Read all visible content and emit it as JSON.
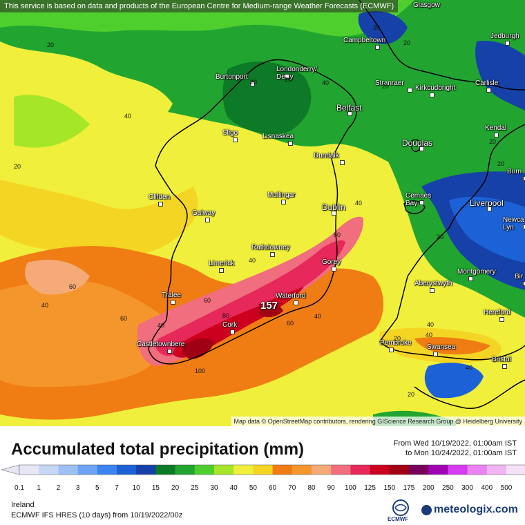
{
  "map": {
    "disclaimer": "This service is based on data and products of the European Centre for Medium-range Weather Forecasts (ECMWF)",
    "attribution": "Map data © OpenStreetMap contributors, rendering GIScience Research Group @ Heidelberg University",
    "max_value": "157",
    "cities": [
      {
        "name": "Glasgow",
        "icon": "none"
      },
      {
        "name": "Campbeltown",
        "icon": "city-dot"
      },
      {
        "name": "Jedburgh",
        "icon": "city-dot"
      },
      {
        "name": "Londonderry/\nDerry",
        "icon": "city-dot"
      },
      {
        "name": "Burtonport",
        "icon": "city-dot"
      },
      {
        "name": "Stranraer",
        "icon": "city-dot"
      },
      {
        "name": "Kirkcudbright",
        "icon": "city-dot"
      },
      {
        "name": "Carlisle",
        "icon": "city-dot"
      },
      {
        "name": "Belfast",
        "icon": "city-dot"
      },
      {
        "name": "Kendal",
        "icon": "city-dot"
      },
      {
        "name": "Sligo",
        "icon": "city-dot"
      },
      {
        "name": "Lisnaskea",
        "icon": "city-dot"
      },
      {
        "name": "Douglas",
        "icon": "city-dot"
      },
      {
        "name": "Dundalk",
        "icon": "city-dot"
      },
      {
        "name": "Burn",
        "icon": "city-dot"
      },
      {
        "name": "Mullingar",
        "icon": "city-dot"
      },
      {
        "name": "Clifden",
        "icon": "city-dot"
      },
      {
        "name": "Cemaes\nBay",
        "icon": "city-dot"
      },
      {
        "name": "Liverpool",
        "icon": "city-dot"
      },
      {
        "name": "Dublin",
        "icon": "city-dot"
      },
      {
        "name": "Galway",
        "icon": "city-dot"
      },
      {
        "name": "Newca\nLyn",
        "icon": "city-dot"
      },
      {
        "name": "Rathdowney",
        "icon": "city-dot"
      },
      {
        "name": "Limerick",
        "icon": "city-dot"
      },
      {
        "name": "Gorey",
        "icon": "city-dot"
      },
      {
        "name": "Montgomery",
        "icon": "city-dot"
      },
      {
        "name": "Bir",
        "icon": "city-dot"
      },
      {
        "name": "Aberystwyth",
        "icon": "city-dot"
      },
      {
        "name": "Tralee",
        "icon": "city-dot"
      },
      {
        "name": "Waterford",
        "icon": "city-dot"
      },
      {
        "name": "Hereford",
        "icon": "city-dot"
      },
      {
        "name": "Cork",
        "icon": "city-dot"
      },
      {
        "name": "Castletownbere",
        "icon": "city-dot"
      },
      {
        "name": "Pembroke",
        "icon": "city-dot"
      },
      {
        "name": "Swansea",
        "icon": "city-dot"
      },
      {
        "name": "Bristol",
        "icon": "city-dot"
      }
    ],
    "contour_labels": [
      "20",
      "20",
      "40",
      "20",
      "20",
      "40",
      "20",
      "20",
      "40",
      "60",
      "40",
      "60",
      "40",
      "60",
      "80",
      "100",
      "60",
      "40",
      "20",
      "40",
      "40",
      "20",
      "40",
      "20",
      "60",
      "40",
      "20",
      "20",
      "20"
    ]
  },
  "footer": {
    "title": "Accumulated total precipitation (mm)",
    "period_from": "From Wed 10/19/2022, 01:00am IST",
    "period_to": "to Mon 10/24/2022, 01:00am IST",
    "region": "Ireland",
    "model": "ECMWF IFS HRES (10 days) from 10/19/2022/00z",
    "ecmwf_logo_text": "ECMWF",
    "brand": "meteologix.com"
  },
  "legend": {
    "labels": [
      "0.1",
      "1",
      "2",
      "3",
      "5",
      "7",
      "10",
      "15",
      "20",
      "25",
      "30",
      "40",
      "50",
      "60",
      "70",
      "80",
      "90",
      "100",
      "125",
      "150",
      "175",
      "200",
      "250",
      "300",
      "400",
      "500"
    ],
    "colors": [
      "#e6e6f5",
      "#c6d7f5",
      "#9fc0f5",
      "#6ea4f5",
      "#3d84f0",
      "#1d61d6",
      "#1641a8",
      "#0c7a27",
      "#21a530",
      "#4fcf2e",
      "#a6e629",
      "#f0f03c",
      "#f5d523",
      "#f07d14",
      "#f5962d",
      "#f5aa78",
      "#f06e7d",
      "#e6285a",
      "#cc001e",
      "#a00014",
      "#78005a",
      "#a000b4",
      "#d73cf0",
      "#eb82f5",
      "#f0b4f5",
      "#f5e1f5",
      "#cfcfcf"
    ]
  },
  "accent": {
    "brand_blue": "#1a3b7a"
  }
}
